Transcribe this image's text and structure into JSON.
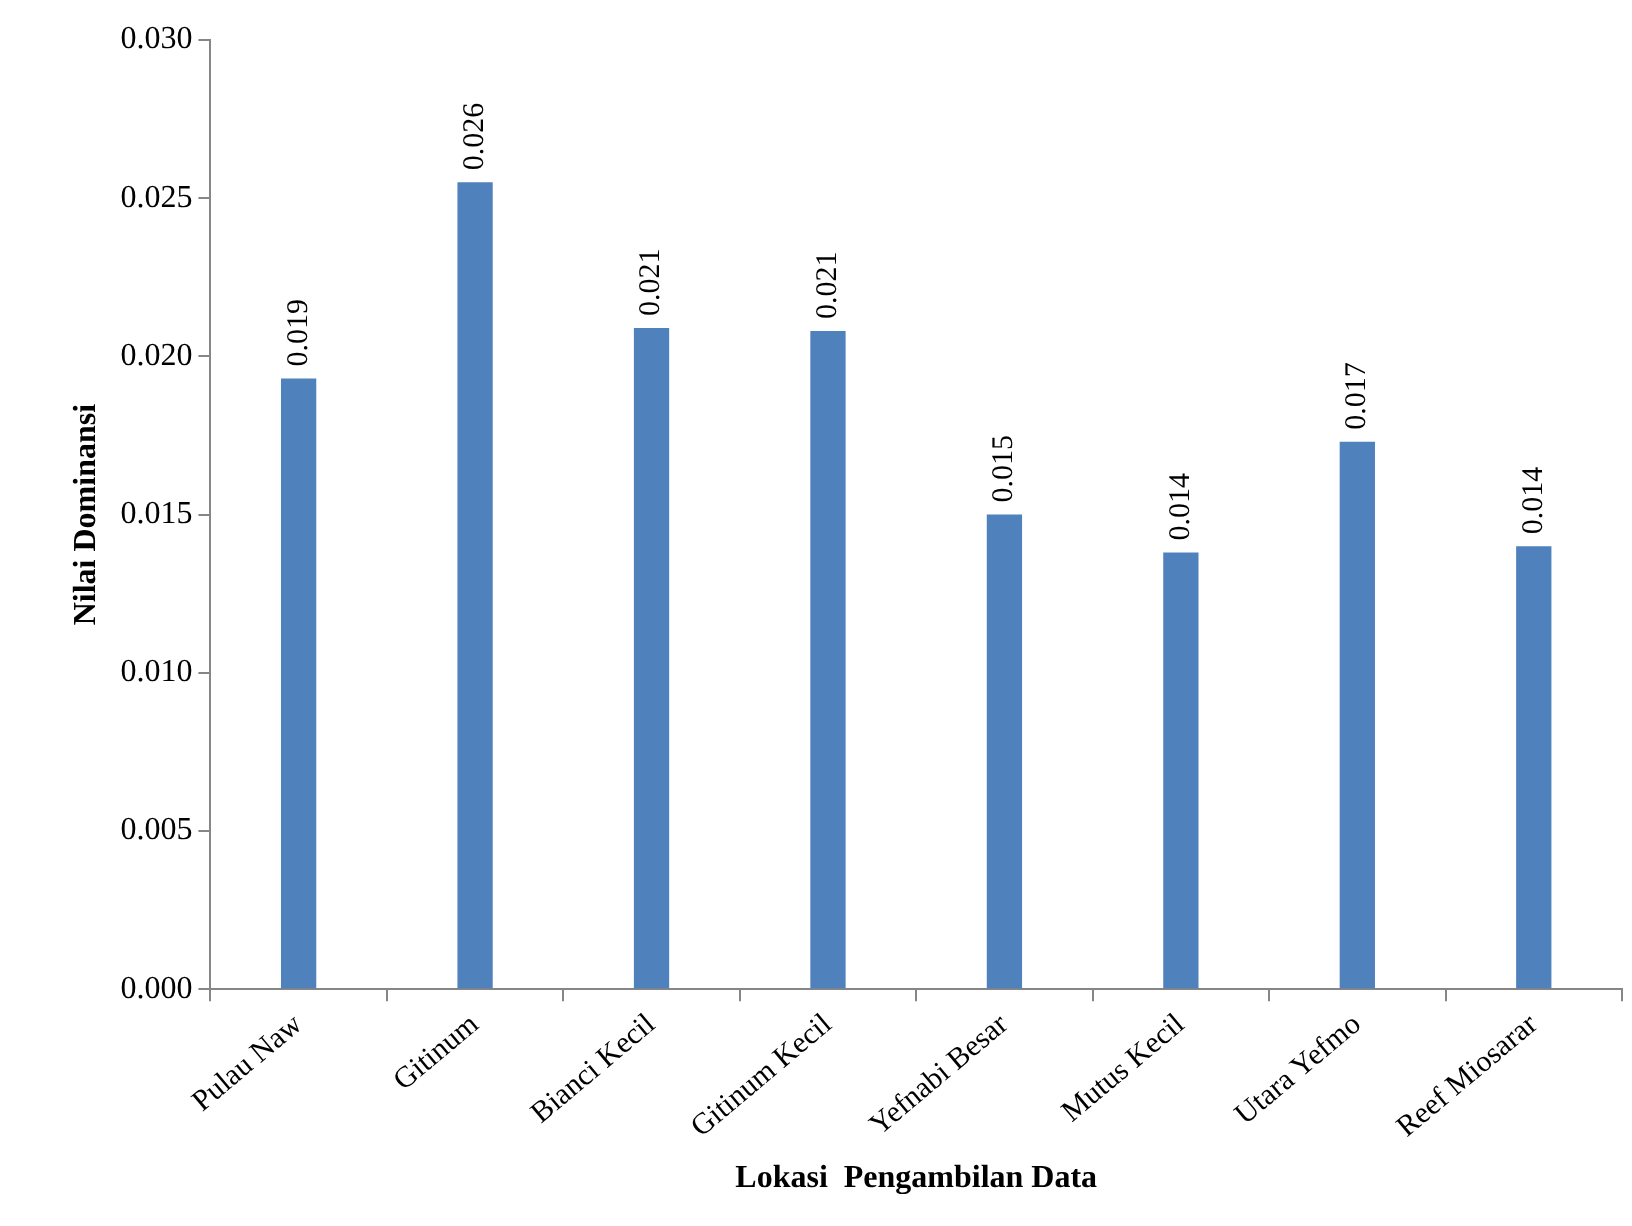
{
  "chart_data": {
    "type": "bar",
    "xlabel": "Lokasi  Pengambilan Data",
    "ylabel": "Nilai Dominansi",
    "categories": [
      "Pulau Naw",
      "Gitinum",
      "Bianci Kecil",
      "Gitinum Kecil",
      "Yefnabi Besar",
      "Mutus Kecil",
      "Utara Yefmo",
      "Reef Miosarar"
    ],
    "values": [
      0.0193,
      0.0255,
      0.0209,
      0.0208,
      0.015,
      0.0138,
      0.0173,
      0.014
    ],
    "value_labels": [
      "0.019",
      "0.026",
      "0.021",
      "0.021",
      "0.015",
      "0.014",
      "0.017",
      "0.014"
    ],
    "color": "#4f81bd",
    "ylim": [
      0,
      0.03
    ],
    "yticks": [
      {
        "value": 0,
        "label": "0.000"
      },
      {
        "value": 0.005,
        "label": "0.005"
      },
      {
        "value": 0.01,
        "label": "0.010"
      },
      {
        "value": 0.015,
        "label": "0.015"
      },
      {
        "value": 0.02,
        "label": "0.020"
      },
      {
        "value": 0.025,
        "label": "0.025"
      },
      {
        "value": 0.03,
        "label": "0.030"
      }
    ]
  }
}
